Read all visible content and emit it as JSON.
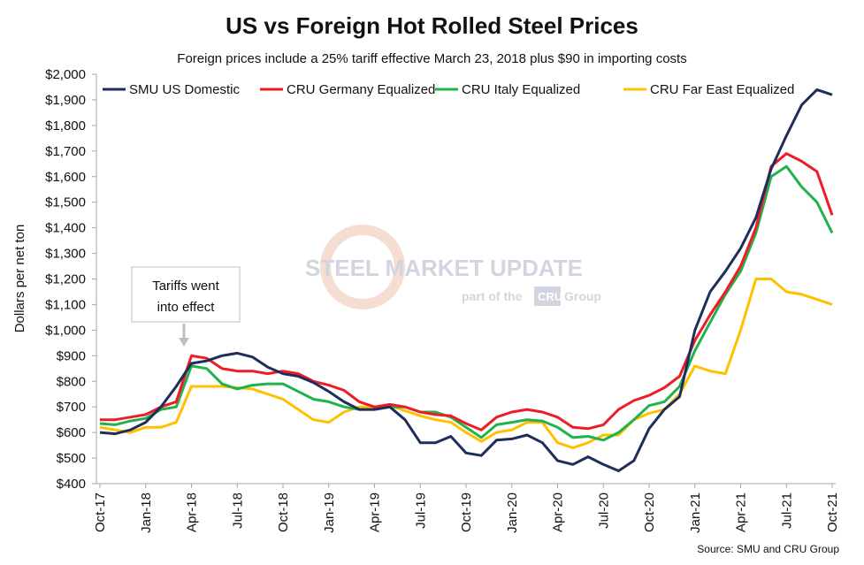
{
  "chart_data": {
    "type": "line",
    "title": "US vs Foreign Hot Rolled Steel Prices",
    "subtitle": "Foreign prices include a 25% tariff effective March 23, 2018 plus $90 in importing costs",
    "ylabel": "Dollars per net ton",
    "xlabel": "",
    "ylim": [
      400,
      2000
    ],
    "ytick_labels": [
      "$400",
      "$500",
      "$600",
      "$700",
      "$800",
      "$900",
      "$1,000",
      "$1,100",
      "$1,200",
      "$1,300",
      "$1,400",
      "$1,500",
      "$1,600",
      "$1,700",
      "$1,800",
      "$1,900",
      "$2,000"
    ],
    "xtick_labels": [
      "Oct-17",
      "Jan-18",
      "Apr-18",
      "Jul-18",
      "Oct-18",
      "Jan-19",
      "Apr-19",
      "Jul-19",
      "Oct-19",
      "Jan-20",
      "Apr-20",
      "Jul-20",
      "Oct-20",
      "Jan-21",
      "Apr-21",
      "Jul-21",
      "Oct-21"
    ],
    "x": [
      "Oct-17",
      "Nov-17",
      "Dec-17",
      "Jan-18",
      "Feb-18",
      "Mar-18",
      "Apr-18",
      "May-18",
      "Jun-18",
      "Jul-18",
      "Aug-18",
      "Sep-18",
      "Oct-18",
      "Nov-18",
      "Dec-18",
      "Jan-19",
      "Feb-19",
      "Mar-19",
      "Apr-19",
      "May-19",
      "Jun-19",
      "Jul-19",
      "Aug-19",
      "Sep-19",
      "Oct-19",
      "Nov-19",
      "Dec-19",
      "Jan-20",
      "Feb-20",
      "Mar-20",
      "Apr-20",
      "May-20",
      "Jun-20",
      "Jul-20",
      "Aug-20",
      "Sep-20",
      "Oct-20",
      "Nov-20",
      "Dec-20",
      "Jan-21",
      "Feb-21",
      "Mar-21",
      "Apr-21",
      "May-21",
      "Jun-21",
      "Jul-21",
      "Aug-21",
      "Sep-21",
      "Oct-21"
    ],
    "series": [
      {
        "name": "SMU US Domestic",
        "color": "#1f2d5c",
        "values": [
          600,
          595,
          610,
          640,
          700,
          780,
          870,
          880,
          900,
          910,
          895,
          855,
          830,
          820,
          795,
          760,
          720,
          690,
          690,
          700,
          650,
          560,
          560,
          585,
          520,
          510,
          570,
          575,
          590,
          560,
          490,
          475,
          505,
          475,
          450,
          490,
          615,
          690,
          740,
          1000,
          1150,
          1230,
          1320,
          1440,
          1630,
          1760,
          1880,
          1940,
          1920
        ]
      },
      {
        "name": "CRU Germany Equalized",
        "color": "#ee1c25",
        "values": [
          650,
          650,
          660,
          670,
          700,
          720,
          900,
          890,
          850,
          840,
          840,
          830,
          840,
          830,
          800,
          785,
          765,
          720,
          700,
          710,
          700,
          680,
          670,
          665,
          635,
          610,
          660,
          680,
          690,
          680,
          660,
          620,
          615,
          630,
          690,
          725,
          745,
          775,
          820,
          960,
          1060,
          1150,
          1250,
          1400,
          1640,
          1690,
          1660,
          1620,
          1450
        ]
      },
      {
        "name": "CRU Italy Equalized",
        "color": "#22b24c",
        "values": [
          635,
          630,
          645,
          655,
          690,
          700,
          860,
          850,
          790,
          770,
          785,
          790,
          790,
          760,
          730,
          720,
          700,
          690,
          690,
          700,
          700,
          680,
          680,
          660,
          620,
          580,
          630,
          640,
          650,
          645,
          620,
          580,
          585,
          570,
          600,
          650,
          705,
          720,
          780,
          920,
          1030,
          1140,
          1230,
          1380,
          1600,
          1640,
          1560,
          1500,
          1380
        ]
      },
      {
        "name": "CRU Far East Equalized",
        "color": "#ffc000",
        "values": [
          620,
          610,
          600,
          620,
          620,
          640,
          780,
          780,
          780,
          775,
          770,
          750,
          730,
          690,
          650,
          640,
          680,
          700,
          700,
          705,
          685,
          665,
          650,
          640,
          600,
          565,
          600,
          610,
          640,
          640,
          560,
          540,
          560,
          590,
          590,
          650,
          675,
          690,
          750,
          860,
          840,
          830,
          1000,
          1200,
          1200,
          1150,
          1140,
          1120,
          1100
        ]
      }
    ],
    "legend_position": "top",
    "annotation": {
      "text_lines": [
        "Tariffs went",
        "into effect"
      ],
      "x": "Apr-18"
    },
    "grid": false
  },
  "watermark": {
    "line1": "STEEL MARKET UPDATE",
    "line2_prefix": "part of the",
    "line2_box": "CRU",
    "line2_suffix": "Group"
  },
  "source": "Source: SMU and CRU Group"
}
